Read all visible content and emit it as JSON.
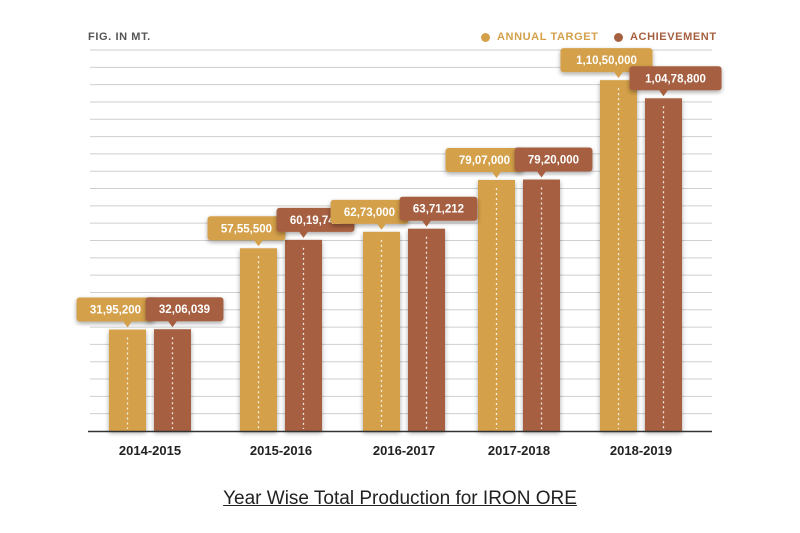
{
  "header": {
    "unit_label": "FIG. IN MT."
  },
  "legend": {
    "target_label": "ANNUAL TARGET",
    "achievement_label": "ACHIEVEMENT"
  },
  "colors": {
    "target": "#d4a04a",
    "achievement": "#a65f3f",
    "grid": "#cfcfcf",
    "axis": "#333333"
  },
  "caption": "Year Wise Total Production for IRON ORE",
  "chart_data": {
    "type": "bar",
    "categories": [
      "2014-2015",
      "2015-2016",
      "2016-2017",
      "2017-2018",
      "2018-2019"
    ],
    "series": [
      {
        "name": "ANNUAL TARGET",
        "values": [
          3195200,
          5755500,
          6273000,
          7907000,
          11050000
        ],
        "labels": [
          "31,95,200",
          "57,55,500",
          "62,73,000",
          "79,07,000",
          "1,10,50,000"
        ]
      },
      {
        "name": "ACHIEVEMENT",
        "values": [
          3206039,
          6019741,
          6371212,
          7920000,
          10478800
        ],
        "labels": [
          "32,06,039",
          "60,19,741",
          "63,71,212",
          "79,20,000",
          "1,04,78,800"
        ]
      }
    ],
    "xlabel": "",
    "ylabel": "",
    "ylim": [
      0,
      12000000
    ],
    "legend_position": "top-right",
    "grid": true
  }
}
